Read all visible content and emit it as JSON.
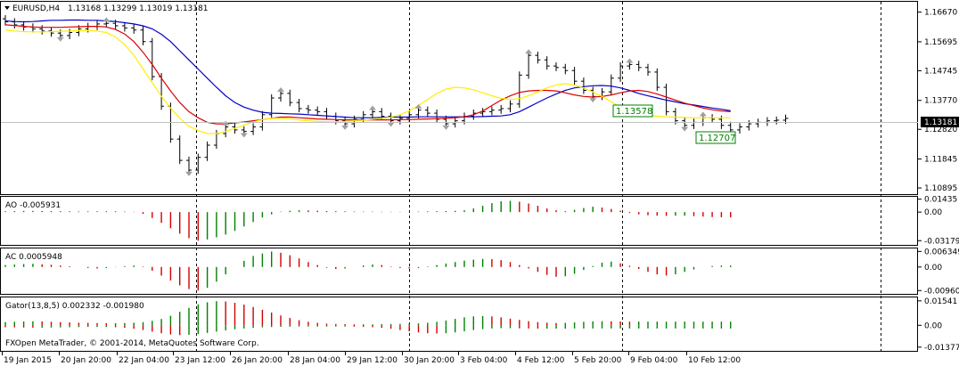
{
  "chart_data": [
    {
      "type": "candlestick",
      "panel": "main",
      "symbol": "EURUSD,H4",
      "ohlc_text": "1.13168 1.13299 1.13019 1.13181",
      "y_ticks": [
        "1.16670",
        "1.15695",
        "1.14745",
        "1.13770",
        "1.12820",
        "1.11845",
        "1.10895"
      ],
      "ylim": [
        1.1075,
        1.1695
      ],
      "current_price": "1.13181",
      "annotations": [
        "1.13578",
        "1.12707"
      ],
      "series": [
        {
          "name": "price",
          "values": [
            1.1635,
            1.1625,
            1.1618,
            1.1612,
            1.1605,
            1.1598,
            1.159,
            1.16,
            1.1612,
            1.162,
            1.1628,
            1.163,
            1.1622,
            1.1615,
            1.1608,
            1.157,
            1.1455,
            1.1358,
            1.125,
            1.118,
            1.1148,
            1.119,
            1.123,
            1.1268,
            1.129,
            1.128,
            1.1275,
            1.129,
            1.133,
            1.1385,
            1.14,
            1.137,
            1.135,
            1.1345,
            1.134,
            1.1325,
            1.131,
            1.13,
            1.1315,
            1.133,
            1.134,
            1.1325,
            1.131,
            1.1318,
            1.133,
            1.1345,
            1.1335,
            1.1315,
            1.13,
            1.131,
            1.1325,
            1.1335,
            1.134,
            1.1345,
            1.135,
            1.1365,
            1.146,
            1.1525,
            1.151,
            1.149,
            1.1485,
            1.1475,
            1.144,
            1.141,
            1.139,
            1.1405,
            1.145,
            1.149,
            1.1495,
            1.1485,
            1.147,
            1.142,
            1.134,
            1.131,
            1.1295,
            1.1305,
            1.132,
            1.1315,
            1.1295,
            1.128,
            1.129,
            1.13,
            1.1305,
            1.131,
            1.1312,
            1.1318
          ]
        },
        {
          "name": "ma_blue",
          "values": [
            1.1638,
            1.1636,
            1.1635,
            1.1636,
            1.1638,
            1.164,
            1.164,
            1.1641,
            1.1641,
            1.164,
            1.164,
            1.1638,
            1.1636,
            1.1632,
            1.1628,
            1.1622,
            1.1612,
            1.1594,
            1.157,
            1.154,
            1.151,
            1.148,
            1.145,
            1.142,
            1.1392,
            1.137,
            1.1355,
            1.1345,
            1.1338,
            1.1335,
            1.1334,
            1.1333,
            1.1332,
            1.133,
            1.1328,
            1.1326,
            1.1324,
            1.1322,
            1.132,
            1.132,
            1.132,
            1.1321,
            1.1322,
            1.1322,
            1.1322,
            1.1323,
            1.1323,
            1.1323,
            1.1323,
            1.1323,
            1.1323,
            1.1323,
            1.1324,
            1.1325,
            1.1326,
            1.133,
            1.134,
            1.1355,
            1.137,
            1.1385,
            1.1398,
            1.141,
            1.1418,
            1.1422,
            1.1425,
            1.1426,
            1.1424,
            1.1418,
            1.141,
            1.14,
            1.1392,
            1.1385,
            1.1378,
            1.1372,
            1.1366,
            1.1362,
            1.1357,
            1.1352,
            1.1348,
            1.1343
          ]
        },
        {
          "name": "ma_red",
          "values": [
            1.1625,
            1.1623,
            1.162,
            1.1618,
            1.1617,
            1.1617,
            1.1617,
            1.1618,
            1.1619,
            1.162,
            1.162,
            1.1618,
            1.161,
            1.1595,
            1.157,
            1.1535,
            1.1495,
            1.145,
            1.1408,
            1.137,
            1.134,
            1.132,
            1.1305,
            1.13,
            1.13,
            1.1303,
            1.1306,
            1.131,
            1.1314,
            1.1318,
            1.1322,
            1.1322,
            1.132,
            1.1318,
            1.1316,
            1.1315,
            1.1314,
            1.1313,
            1.1313,
            1.1313,
            1.1313,
            1.1313,
            1.1313,
            1.1314,
            1.1314,
            1.1315,
            1.1316,
            1.1317,
            1.1318,
            1.132,
            1.1323,
            1.133,
            1.1342,
            1.136,
            1.1378,
            1.1392,
            1.1403,
            1.1408,
            1.141,
            1.141,
            1.1408,
            1.1402,
            1.1395,
            1.139,
            1.1388,
            1.139,
            1.1395,
            1.1402,
            1.1408,
            1.141,
            1.1406,
            1.1398,
            1.1388,
            1.1378,
            1.1368,
            1.136,
            1.1352,
            1.1346,
            1.1342,
            1.134
          ]
        },
        {
          "name": "ma_yellow",
          "values": [
            1.1608,
            1.1605,
            1.1603,
            1.1602,
            1.1602,
            1.1603,
            1.1604,
            1.1605,
            1.1606,
            1.1606,
            1.1605,
            1.16,
            1.1585,
            1.156,
            1.1525,
            1.148,
            1.1435,
            1.139,
            1.1352,
            1.1318,
            1.1292,
            1.1278,
            1.1268,
            1.1268,
            1.1275,
            1.1285,
            1.1296,
            1.1306,
            1.1314,
            1.1318,
            1.1318,
            1.1316,
            1.1313,
            1.131,
            1.1308,
            1.1307,
            1.1307,
            1.1308,
            1.131,
            1.1312,
            1.1315,
            1.1318,
            1.1322,
            1.133,
            1.1343,
            1.136,
            1.138,
            1.14,
            1.1414,
            1.142,
            1.1418,
            1.1412,
            1.1402,
            1.1392,
            1.1384,
            1.138,
            1.1383,
            1.1392,
            1.1405,
            1.1418,
            1.1428,
            1.1432,
            1.1427,
            1.1418,
            1.1405,
            1.139,
            1.1372,
            1.1355,
            1.1342,
            1.1333,
            1.1328,
            1.1325,
            1.1323,
            1.1322,
            1.1321,
            1.132,
            1.132,
            1.132,
            1.132,
            1.132
          ]
        }
      ]
    },
    {
      "type": "histogram",
      "panel": "ao",
      "label": "AO -0.005931",
      "y_ticks": [
        "0.01435",
        "0.00",
        "-0.031795"
      ],
      "ylim": [
        -0.0355,
        0.016
      ],
      "values": [
        0.001,
        0.0012,
        0.0013,
        0.0013,
        0.0012,
        0.0011,
        0.001,
        0.0009,
        0.0007,
        0.0008,
        0.0009,
        0.0009,
        0.0008,
        0.0006,
        0.0004,
        -0.002,
        -0.0065,
        -0.012,
        -0.018,
        -0.024,
        -0.029,
        -0.0318,
        -0.0305,
        -0.028,
        -0.025,
        -0.021,
        -0.016,
        -0.011,
        -0.006,
        -0.0025,
        0.0005,
        0.0015,
        0.002,
        0.0018,
        0.0015,
        0.0012,
        0.001,
        0.0008,
        0.0006,
        0.0005,
        0.0005,
        0.0004,
        0.0004,
        0.0003,
        0.0004,
        0.0006,
        0.0008,
        0.001,
        0.0012,
        0.0014,
        0.002,
        0.004,
        0.007,
        0.01,
        0.012,
        0.0125,
        0.0115,
        0.0095,
        0.007,
        0.004,
        0.002,
        0.001,
        0.0025,
        0.0045,
        0.006,
        0.005,
        0.0035,
        0.0015,
        -0.001,
        -0.0025,
        -0.0035,
        -0.004,
        -0.0042,
        -0.004,
        -0.004,
        -0.0045,
        -0.005,
        -0.0055,
        -0.0058,
        -0.0059
      ]
    },
    {
      "type": "histogram",
      "panel": "ac",
      "label": "AC 0.0005948",
      "y_ticks": [
        "0.006349",
        "0.00",
        "-0.009608"
      ],
      "ylim": [
        -0.0106,
        0.0072
      ],
      "values": [
        0.0008,
        0.001,
        0.0012,
        0.0013,
        0.0011,
        0.0009,
        0.0006,
        0.0003,
        0.0,
        -0.0004,
        -0.0006,
        -0.0004,
        -0.0001,
        0.0003,
        0.0006,
        0.0002,
        -0.0015,
        -0.0035,
        -0.0055,
        -0.0075,
        -0.009,
        -0.0096,
        -0.0085,
        -0.006,
        -0.003,
        0.0,
        0.0025,
        0.0045,
        0.0055,
        0.0063,
        0.0058,
        0.0048,
        0.0035,
        0.002,
        0.0008,
        -0.0003,
        -0.0008,
        -0.0006,
        0.0,
        0.0006,
        0.001,
        0.0008,
        0.0002,
        -0.0004,
        -0.0006,
        -0.0004,
        0.0002,
        0.0008,
        0.0014,
        0.002,
        0.0026,
        0.003,
        0.0033,
        0.0032,
        0.0028,
        0.002,
        0.0008,
        -0.0006,
        -0.002,
        -0.0032,
        -0.004,
        -0.0038,
        -0.0028,
        -0.0012,
        0.0004,
        0.0018,
        0.0022,
        0.0015,
        0.0005,
        -0.0008,
        -0.002,
        -0.003,
        -0.0035,
        -0.003,
        -0.002,
        -0.001,
        0.0,
        0.0004,
        0.0006,
        0.0006
      ]
    },
    {
      "type": "histogram",
      "panel": "gator",
      "label": "Gator(13,8,5) 0.002332 -0.001980",
      "y_ticks": [
        "0.01541",
        "0.00",
        "-0.013772"
      ],
      "ylim": [
        -0.015,
        0.017
      ],
      "upper": [
        0.002,
        0.0022,
        0.0024,
        0.0025,
        0.0024,
        0.0022,
        0.002,
        0.0018,
        0.0016,
        0.0015,
        0.0014,
        0.0013,
        0.0013,
        0.0014,
        0.0016,
        0.002,
        0.0028,
        0.004,
        0.006,
        0.0085,
        0.011,
        0.0132,
        0.0145,
        0.0152,
        0.015,
        0.0142,
        0.013,
        0.0115,
        0.0098,
        0.008,
        0.0062,
        0.0046,
        0.0032,
        0.0022,
        0.0015,
        0.001,
        0.0008,
        0.0007,
        0.0006,
        0.0006,
        0.0006,
        0.0007,
        0.0008,
        0.0009,
        0.001,
        0.0012,
        0.0016,
        0.0022,
        0.003,
        0.004,
        0.005,
        0.0056,
        0.0058,
        0.0056,
        0.005,
        0.0042,
        0.0034,
        0.0026,
        0.002,
        0.0016,
        0.0014,
        0.0015,
        0.0018,
        0.0022,
        0.0025,
        0.0026,
        0.0025,
        0.0024,
        0.0023,
        0.0023,
        0.0023,
        0.0023,
        0.0023,
        0.0023,
        0.0023,
        0.0023,
        0.0023,
        0.0023,
        0.0023,
        0.0023
      ],
      "lower": [
        -0.0012,
        -0.0013,
        -0.0014,
        -0.0015,
        -0.0015,
        -0.0014,
        -0.0013,
        -0.0012,
        -0.0011,
        -0.001,
        -0.001,
        -0.001,
        -0.0012,
        -0.0016,
        -0.0022,
        -0.003,
        -0.004,
        -0.005,
        -0.0058,
        -0.0062,
        -0.006,
        -0.0055,
        -0.0048,
        -0.004,
        -0.0032,
        -0.0025,
        -0.002,
        -0.0016,
        -0.0013,
        -0.0011,
        -0.001,
        -0.0009,
        -0.0008,
        -0.0008,
        -0.0008,
        -0.0008,
        -0.0008,
        -0.0008,
        -0.0009,
        -0.001,
        -0.0012,
        -0.0016,
        -0.0022,
        -0.003,
        -0.0038,
        -0.0045,
        -0.005,
        -0.0052,
        -0.005,
        -0.0045,
        -0.0038,
        -0.003,
        -0.0024,
        -0.002,
        -0.0018,
        -0.0018,
        -0.0019,
        -0.002,
        -0.0021,
        -0.0021,
        -0.0021,
        -0.0021,
        -0.002,
        -0.002,
        -0.002,
        -0.002,
        -0.002,
        -0.002,
        -0.002,
        -0.002,
        -0.002,
        -0.002,
        -0.002,
        -0.002,
        -0.002,
        -0.002,
        -0.002,
        -0.002,
        -0.002,
        -0.002
      ]
    }
  ],
  "x_ticks": [
    "19 Jan 2015",
    "20 Jan 20:00",
    "22 Jan 04:00",
    "23 Jan 12:00",
    "26 Jan 20:00",
    "28 Jan 04:00",
    "29 Jan 12:00",
    "30 Jan 20:00",
    "3 Feb 04:00",
    "4 Feb 12:00",
    "5 Feb 20:00",
    "9 Feb 04:00",
    "10 Feb 12:00"
  ],
  "copyright": "FXOpen MetaTrader, © 2001-2014, MetaQuotes Software Corp.",
  "colors": {
    "background": "#ffffff",
    "axis": "#000000",
    "up": "#008000",
    "down": "#d00000",
    "ma_blue": "#0000c8",
    "ma_red": "#dd0000",
    "ma_yellow": "#ffee00",
    "grid_separator": "#000000",
    "price_label_bg": "#000000",
    "annotation_border": "#008000",
    "fractal": "#a0a0a0"
  },
  "icons": {
    "symbol_marker": "triangle-down-icon"
  }
}
